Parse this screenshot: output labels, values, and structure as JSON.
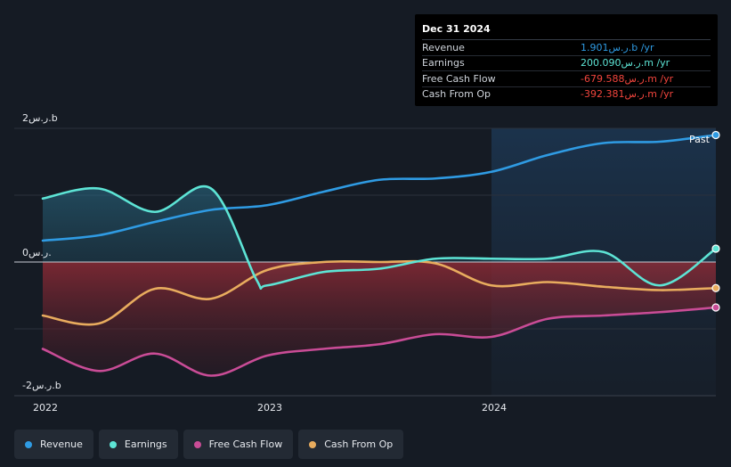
{
  "chart_data": {
    "type": "area",
    "currency_unit": "ر.س",
    "y_axis": {
      "min": -2,
      "max": 2,
      "unit": "b",
      "labels": [
        "2ر.س.b",
        "0ر.س.",
        "-2ر.س.b"
      ]
    },
    "x_axis": {
      "range": [
        2022.0,
        2025.0
      ],
      "ticks": [
        {
          "v": 2022,
          "label": "2022"
        },
        {
          "v": 2023,
          "label": "2023"
        },
        {
          "v": 2024,
          "label": "2024"
        }
      ]
    },
    "past_region_start": 2024.0,
    "past_label": "Past",
    "series": [
      {
        "name": "Revenue",
        "color": "#2f9be3",
        "points": [
          [
            2022.0,
            0.32
          ],
          [
            2022.25,
            0.4
          ],
          [
            2022.5,
            0.6
          ],
          [
            2022.75,
            0.78
          ],
          [
            2023.0,
            0.85
          ],
          [
            2023.25,
            1.05
          ],
          [
            2023.5,
            1.23
          ],
          [
            2023.75,
            1.25
          ],
          [
            2024.0,
            1.35
          ],
          [
            2024.25,
            1.6
          ],
          [
            2024.5,
            1.78
          ],
          [
            2024.75,
            1.8
          ],
          [
            2025.0,
            1.9
          ]
        ]
      },
      {
        "name": "Earnings",
        "color": "#5de4d5",
        "points": [
          [
            2022.0,
            0.95
          ],
          [
            2022.25,
            1.1
          ],
          [
            2022.5,
            0.75
          ],
          [
            2022.75,
            1.1
          ],
          [
            2022.95,
            -0.25
          ],
          [
            2023.0,
            -0.35
          ],
          [
            2023.25,
            -0.15
          ],
          [
            2023.5,
            -0.1
          ],
          [
            2023.75,
            0.05
          ],
          [
            2024.0,
            0.05
          ],
          [
            2024.25,
            0.05
          ],
          [
            2024.5,
            0.15
          ],
          [
            2024.75,
            -0.35
          ],
          [
            2025.0,
            0.2
          ]
        ]
      },
      {
        "name": "Free Cash Flow",
        "color": "#c94c96",
        "points": [
          [
            2022.0,
            -1.3
          ],
          [
            2022.25,
            -1.63
          ],
          [
            2022.5,
            -1.37
          ],
          [
            2022.75,
            -1.7
          ],
          [
            2023.0,
            -1.4
          ],
          [
            2023.25,
            -1.3
          ],
          [
            2023.5,
            -1.23
          ],
          [
            2023.75,
            -1.08
          ],
          [
            2024.0,
            -1.12
          ],
          [
            2024.25,
            -0.85
          ],
          [
            2024.5,
            -0.8
          ],
          [
            2024.75,
            -0.75
          ],
          [
            2025.0,
            -0.68
          ]
        ]
      },
      {
        "name": "Cash From Op",
        "color": "#e8ac5e",
        "points": [
          [
            2022.0,
            -0.8
          ],
          [
            2022.25,
            -0.92
          ],
          [
            2022.5,
            -0.4
          ],
          [
            2022.75,
            -0.55
          ],
          [
            2023.0,
            -0.12
          ],
          [
            2023.25,
            0.0
          ],
          [
            2023.5,
            0.0
          ],
          [
            2023.75,
            -0.02
          ],
          [
            2024.0,
            -0.35
          ],
          [
            2024.25,
            -0.3
          ],
          [
            2024.5,
            -0.37
          ],
          [
            2024.75,
            -0.42
          ],
          [
            2025.0,
            -0.39
          ]
        ]
      }
    ]
  },
  "tooltip": {
    "date": "Dec 31 2024",
    "rows": [
      {
        "label": "Revenue",
        "value": "1.901ر.س.b /yr",
        "color": "#2f9be3"
      },
      {
        "label": "Earnings",
        "value": "200.090ر.س.m /yr",
        "color": "#5de4d5"
      },
      {
        "label": "Free Cash Flow",
        "value": "-679.588ر.س.m /yr",
        "color": "#f2453d"
      },
      {
        "label": "Cash From Op",
        "value": "-392.381ر.س.m /yr",
        "color": "#f2453d"
      }
    ]
  },
  "legend": [
    {
      "label": "Revenue",
      "color": "#2f9be3"
    },
    {
      "label": "Earnings",
      "color": "#5de4d5"
    },
    {
      "label": "Free Cash Flow",
      "color": "#c94c96"
    },
    {
      "label": "Cash From Op",
      "color": "#e8ac5e"
    }
  ]
}
